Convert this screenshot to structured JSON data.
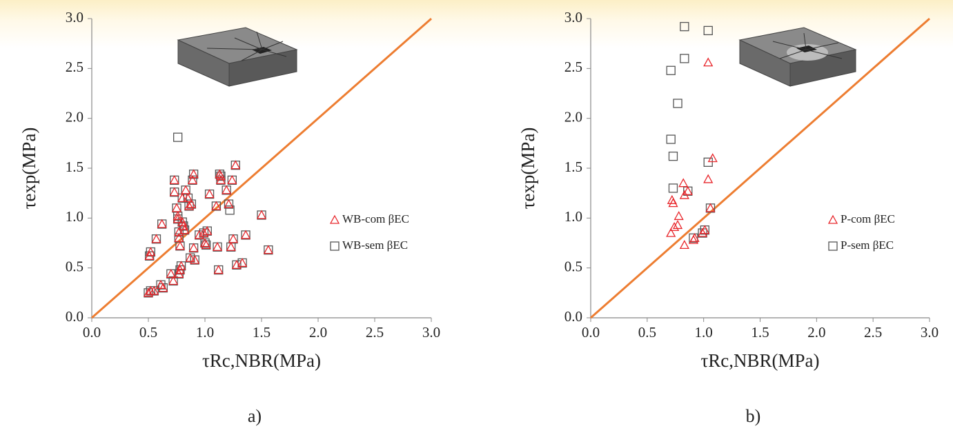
{
  "chart_data": [
    {
      "type": "scatter",
      "panel_label": "a)",
      "x_label": "τRc,NBR(MPa)",
      "y_label": "τexp(MPa)",
      "xlim": [
        0,
        3
      ],
      "ylim": [
        0,
        3
      ],
      "xticks": [
        {
          "value": 0,
          "label": "0.0"
        },
        0.5,
        {
          "value": 1,
          "label": "1.0"
        },
        1.5,
        {
          "value": 2,
          "label": "2.0"
        },
        2.5,
        {
          "value": 3,
          "label": "3.0"
        }
      ],
      "yticks": [
        {
          "value": 0,
          "label": "0.0"
        },
        0.5,
        {
          "value": 1,
          "label": "1.0"
        },
        1.5,
        {
          "value": 2,
          "label": "2.0"
        },
        2.5,
        {
          "value": 3,
          "label": "3.0"
        }
      ],
      "diagonal_color": "#ed7d31",
      "legend": "right",
      "series": [
        {
          "name": "WB-com βEC",
          "marker": "triangle",
          "color": "#e8262b",
          "x": [
            0.5,
            0.52,
            0.55,
            0.51,
            0.52,
            0.57,
            0.62,
            0.61,
            0.63,
            0.7,
            0.72,
            0.73,
            0.73,
            0.75,
            0.76,
            0.76,
            0.77,
            0.77,
            0.78,
            0.77,
            0.78,
            0.79,
            0.8,
            0.8,
            0.81,
            0.82,
            0.83,
            0.85,
            0.86,
            0.87,
            0.88,
            0.89,
            0.9,
            0.9,
            0.91,
            0.95,
            0.99,
            1.0,
            1.01,
            1.02,
            1.04,
            1.1,
            1.11,
            1.12,
            1.13,
            1.14,
            1.14,
            1.19,
            1.21,
            1.23,
            1.24,
            1.25,
            1.27,
            1.28,
            1.33,
            1.36,
            1.5,
            1.56
          ],
          "values": [
            0.25,
            0.27,
            0.27,
            0.62,
            0.66,
            0.79,
            0.94,
            0.33,
            0.3,
            0.44,
            0.37,
            1.38,
            1.26,
            1.1,
            1.02,
            0.99,
            0.86,
            0.8,
            0.72,
            0.44,
            0.48,
            0.52,
            1.2,
            0.96,
            0.92,
            0.88,
            1.28,
            1.2,
            1.12,
            0.6,
            1.14,
            1.38,
            1.44,
            0.7,
            0.58,
            0.83,
            0.85,
            0.75,
            0.73,
            0.87,
            1.24,
            1.12,
            0.71,
            0.48,
            1.44,
            1.42,
            1.38,
            1.28,
            1.14,
            0.71,
            1.38,
            0.79,
            1.53,
            0.53,
            0.55,
            0.83,
            1.03,
            0.68
          ]
        },
        {
          "name": "WB-sem βEC",
          "marker": "square",
          "color": "#555555",
          "x": [
            0.5,
            0.52,
            0.55,
            0.51,
            0.52,
            0.57,
            0.62,
            0.61,
            0.63,
            0.7,
            0.72,
            0.73,
            0.73,
            0.75,
            0.76,
            0.76,
            0.77,
            0.77,
            0.78,
            0.77,
            0.78,
            0.79,
            0.8,
            0.8,
            0.81,
            0.82,
            0.83,
            0.85,
            0.86,
            0.87,
            0.88,
            0.89,
            0.9,
            0.9,
            0.91,
            0.95,
            0.99,
            1.0,
            1.01,
            1.02,
            1.04,
            1.1,
            1.11,
            1.12,
            1.13,
            1.14,
            1.14,
            1.19,
            1.21,
            1.23,
            1.24,
            1.25,
            1.27,
            1.28,
            1.33,
            1.36,
            1.5,
            1.56,
            0.76,
            1.22
          ],
          "values": [
            0.25,
            0.27,
            0.27,
            0.62,
            0.66,
            0.79,
            0.94,
            0.33,
            0.3,
            0.44,
            0.37,
            1.38,
            1.26,
            1.1,
            1.02,
            0.99,
            0.86,
            0.8,
            0.72,
            0.44,
            0.48,
            0.52,
            1.2,
            0.96,
            0.92,
            0.88,
            1.28,
            1.2,
            1.12,
            0.6,
            1.14,
            1.38,
            1.44,
            0.7,
            0.58,
            0.83,
            0.85,
            0.75,
            0.73,
            0.87,
            1.24,
            1.12,
            0.71,
            0.48,
            1.44,
            1.42,
            1.38,
            1.28,
            1.14,
            0.71,
            1.38,
            0.79,
            1.53,
            0.53,
            0.55,
            0.83,
            1.03,
            0.68,
            1.81,
            1.08
          ]
        }
      ]
    },
    {
      "type": "scatter",
      "panel_label": "b)",
      "x_label": "τRc,NBR(MPa)",
      "y_label": "τexp(MPa)",
      "xlim": [
        0,
        3
      ],
      "ylim": [
        0,
        3
      ],
      "xticks": [
        {
          "value": 0,
          "label": "0.0"
        },
        0.5,
        {
          "value": 1,
          "label": "1.0"
        },
        1.5,
        {
          "value": 2,
          "label": "2.0"
        },
        2.5,
        {
          "value": 3,
          "label": "3.0"
        }
      ],
      "yticks": [
        {
          "value": 0,
          "label": "0.0"
        },
        0.5,
        {
          "value": 1,
          "label": "1.0"
        },
        1.5,
        {
          "value": 2,
          "label": "2.0"
        },
        2.5,
        {
          "value": 3,
          "label": "3.0"
        }
      ],
      "diagonal_color": "#ed7d31",
      "legend": "right",
      "series": [
        {
          "name": "P-com βEC",
          "marker": "triangle",
          "color": "#e8262b",
          "x": [
            0.71,
            0.72,
            0.73,
            0.74,
            0.77,
            0.78,
            0.82,
            0.83,
            0.83,
            0.86,
            0.91,
            0.92,
            0.99,
            1.01,
            1.04,
            1.04,
            1.06,
            1.08
          ],
          "values": [
            0.85,
            1.18,
            1.15,
            0.91,
            0.93,
            1.02,
            1.35,
            0.73,
            1.23,
            1.27,
            0.78,
            0.8,
            0.85,
            0.88,
            1.39,
            2.56,
            1.1,
            1.6
          ]
        },
        {
          "name": "P-sem βEC",
          "marker": "square",
          "color": "#555555",
          "x": [
            0.71,
            0.71,
            0.73,
            0.73,
            0.77,
            0.83,
            0.83,
            0.86,
            0.91,
            0.99,
            1.01,
            1.04,
            1.04,
            1.06
          ],
          "values": [
            2.48,
            1.79,
            1.62,
            1.3,
            2.15,
            2.92,
            2.6,
            1.27,
            0.8,
            0.85,
            0.88,
            2.88,
            1.56,
            1.1
          ]
        }
      ]
    }
  ]
}
